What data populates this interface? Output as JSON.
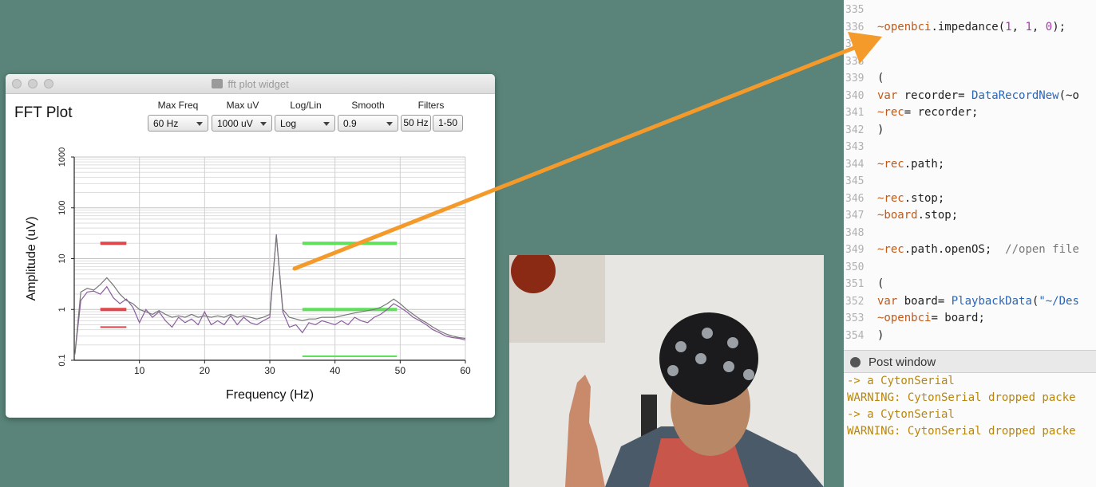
{
  "fft_window": {
    "title": "fft plot widget",
    "heading": "FFT Plot",
    "controls": [
      {
        "label": "Max Freq",
        "value": "60 Hz"
      },
      {
        "label": "Max uV",
        "value": "1000 uV"
      },
      {
        "label": "Log/Lin",
        "value": "Log"
      },
      {
        "label": "Smooth",
        "value": "0.9"
      }
    ],
    "filters_label": "Filters",
    "filter_buttons": [
      "50 Hz",
      "1-50"
    ]
  },
  "chart_data": {
    "type": "line",
    "xlabel": "Frequency (Hz)",
    "ylabel": "Amplitude (uV)",
    "xlim": [
      0,
      60
    ],
    "ylim": [
      0.1,
      1000
    ],
    "yscale": "log",
    "x_ticks": [
      "10",
      "20",
      "30",
      "40",
      "50",
      "60"
    ],
    "y_ticks": [
      "0.1",
      "1",
      "10",
      "100",
      "1000"
    ],
    "grid": true,
    "series": [
      {
        "color": "#8a5c9e",
        "x": [
          0.1,
          1,
          2,
          3,
          4,
          5,
          6,
          7,
          8,
          9,
          10,
          11,
          12,
          13,
          14,
          15,
          16,
          17,
          18,
          19,
          20,
          21,
          22,
          23,
          24,
          25,
          26,
          27,
          28,
          29,
          30,
          31,
          32,
          33,
          34,
          35,
          36,
          37,
          38,
          39,
          40,
          41,
          42,
          43,
          44,
          45,
          46,
          47,
          48,
          49,
          50,
          51,
          52,
          53,
          54,
          55,
          56,
          57,
          58,
          59,
          60
        ],
        "y": [
          0.13,
          1.5,
          2.2,
          2.3,
          2.0,
          2.8,
          1.7,
          1.3,
          1.6,
          1.1,
          0.55,
          1.0,
          0.7,
          0.9,
          0.6,
          0.45,
          0.7,
          0.55,
          0.65,
          0.5,
          0.9,
          0.5,
          0.6,
          0.5,
          0.75,
          0.5,
          0.7,
          0.55,
          0.5,
          0.6,
          0.7,
          30,
          0.9,
          0.45,
          0.5,
          0.35,
          0.55,
          0.5,
          0.6,
          0.55,
          0.5,
          0.6,
          0.5,
          0.7,
          0.6,
          0.55,
          0.7,
          0.8,
          1.0,
          1.3,
          1.1,
          0.9,
          0.7,
          0.6,
          0.5,
          0.4,
          0.35,
          0.3,
          0.28,
          0.27,
          0.25
        ]
      },
      {
        "color": "#777777",
        "x": [
          0.1,
          1,
          2,
          3,
          4,
          5,
          6,
          7,
          8,
          9,
          10,
          11,
          12,
          13,
          14,
          15,
          16,
          17,
          18,
          19,
          20,
          21,
          22,
          23,
          24,
          25,
          26,
          27,
          28,
          29,
          30,
          31,
          32,
          33,
          34,
          35,
          36,
          37,
          38,
          39,
          40,
          41,
          42,
          43,
          44,
          45,
          46,
          47,
          48,
          49,
          50,
          51,
          52,
          53,
          54,
          55,
          56,
          57,
          58,
          59,
          60
        ],
        "y": [
          0.13,
          2.2,
          2.6,
          2.4,
          3.1,
          4.2,
          3.0,
          2.0,
          1.5,
          1.3,
          1.0,
          0.9,
          0.8,
          0.95,
          0.8,
          0.7,
          0.75,
          0.7,
          0.8,
          0.7,
          0.75,
          0.7,
          0.75,
          0.7,
          0.8,
          0.7,
          0.75,
          0.7,
          0.65,
          0.7,
          0.8,
          28,
          1.0,
          0.7,
          0.65,
          0.6,
          0.65,
          0.65,
          0.7,
          0.7,
          0.7,
          0.75,
          0.8,
          0.85,
          0.9,
          0.95,
          1.0,
          1.1,
          1.3,
          1.6,
          1.3,
          1.0,
          0.8,
          0.65,
          0.55,
          0.45,
          0.38,
          0.33,
          0.3,
          0.28,
          0.27
        ]
      }
    ],
    "threshold_bars": [
      {
        "color": "#e0474c",
        "x": [
          4,
          8
        ],
        "y": 20
      },
      {
        "color": "#e0474c",
        "x": [
          4,
          8
        ],
        "y": 1
      },
      {
        "color": "#e0474c",
        "x": [
          4,
          8
        ],
        "y": 0.45
      },
      {
        "color": "#5ee05a",
        "x": [
          35,
          49.5
        ],
        "y": 20
      },
      {
        "color": "#5ee05a",
        "x": [
          35,
          49.5
        ],
        "y": 1
      },
      {
        "color": "#5ee05a",
        "x": [
          35,
          49.5
        ],
        "y": 0.12
      }
    ]
  },
  "editor": {
    "lines": [
      {
        "n": "335",
        "parts": []
      },
      {
        "n": "336",
        "parts": [
          {
            "t": "~openbci",
            "c": "env"
          },
          {
            "t": ".impedance(",
            "c": "code"
          },
          {
            "t": "1",
            "c": "num"
          },
          {
            "t": ", ",
            "c": "code"
          },
          {
            "t": "1",
            "c": "num"
          },
          {
            "t": ", ",
            "c": "code"
          },
          {
            "t": "0",
            "c": "num"
          },
          {
            "t": ");",
            "c": "code"
          }
        ]
      },
      {
        "n": "337",
        "parts": []
      },
      {
        "n": "338",
        "parts": []
      },
      {
        "n": "339",
        "parts": [
          {
            "t": "(",
            "c": "code"
          }
        ]
      },
      {
        "n": "340",
        "parts": [
          {
            "t": "var ",
            "c": "env"
          },
          {
            "t": "recorder= ",
            "c": "code"
          },
          {
            "t": "DataRecordNew",
            "c": "cls"
          },
          {
            "t": "(~o",
            "c": "code"
          }
        ]
      },
      {
        "n": "341",
        "parts": [
          {
            "t": "~rec",
            "c": "env"
          },
          {
            "t": "= recorder;",
            "c": "code"
          }
        ]
      },
      {
        "n": "342",
        "parts": [
          {
            "t": ")",
            "c": "code"
          }
        ]
      },
      {
        "n": "343",
        "parts": []
      },
      {
        "n": "344",
        "parts": [
          {
            "t": "~rec",
            "c": "env"
          },
          {
            "t": ".path;",
            "c": "code"
          }
        ]
      },
      {
        "n": "345",
        "parts": []
      },
      {
        "n": "346",
        "parts": [
          {
            "t": "~rec",
            "c": "env"
          },
          {
            "t": ".stop;",
            "c": "code"
          }
        ]
      },
      {
        "n": "347",
        "parts": [
          {
            "t": "~board",
            "c": "env"
          },
          {
            "t": ".stop;",
            "c": "code"
          }
        ]
      },
      {
        "n": "348",
        "parts": []
      },
      {
        "n": "349",
        "parts": [
          {
            "t": "~rec",
            "c": "env"
          },
          {
            "t": ".path.openOS;  ",
            "c": "code"
          },
          {
            "t": "//open file",
            "c": "cmt"
          }
        ]
      },
      {
        "n": "350",
        "parts": []
      },
      {
        "n": "351",
        "parts": [
          {
            "t": "(",
            "c": "code"
          }
        ]
      },
      {
        "n": "352",
        "parts": [
          {
            "t": "var ",
            "c": "env"
          },
          {
            "t": "board= ",
            "c": "code"
          },
          {
            "t": "PlaybackData",
            "c": "cls"
          },
          {
            "t": "(",
            "c": "code"
          },
          {
            "t": "\"~/Des",
            "c": "str"
          }
        ]
      },
      {
        "n": "353",
        "parts": [
          {
            "t": "~openbci",
            "c": "env"
          },
          {
            "t": "= board;",
            "c": "code"
          }
        ]
      },
      {
        "n": "354",
        "parts": [
          {
            "t": ")",
            "c": "code"
          }
        ]
      }
    ]
  },
  "post_window": {
    "title": "Post window",
    "lines": [
      "-> a CytonSerial",
      "WARNING: CytonSerial dropped packe",
      "-> a CytonSerial",
      "WARNING: CytonSerial dropped packe"
    ]
  },
  "colors": {
    "desktop": "#5a8479",
    "arrow": "#f39a2b"
  }
}
